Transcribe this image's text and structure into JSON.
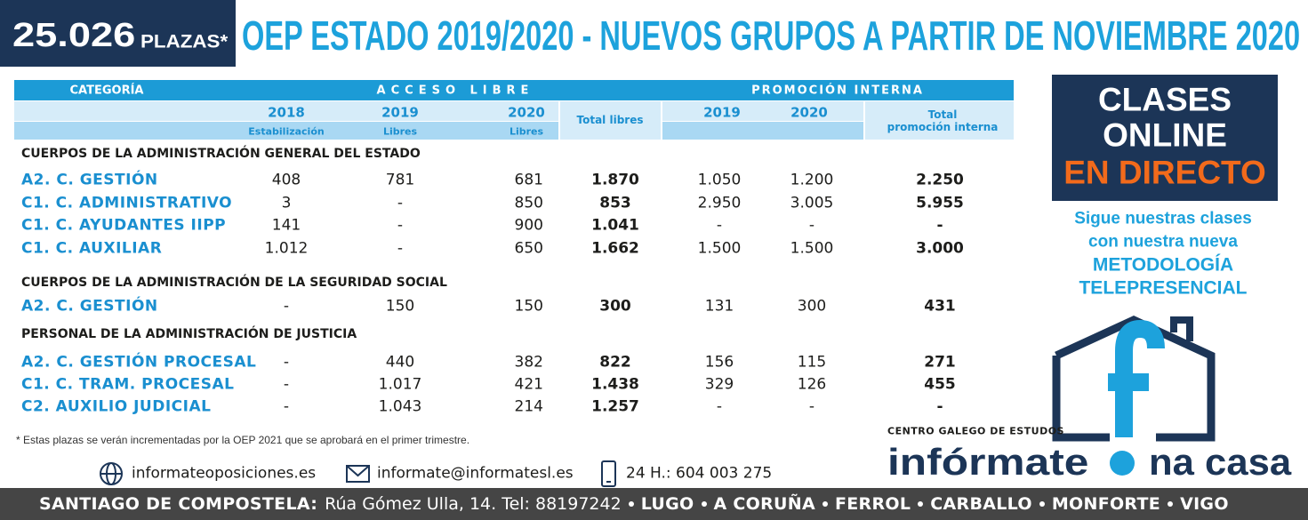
{
  "header": {
    "badge_number": "25.026",
    "badge_unit": "PLAZAS*",
    "title": "OEP ESTADO 2019/2020 - NUEVOS GRUPOS A PARTIR DE NOVIEMBRE 2020"
  },
  "table": {
    "col_categoria": "CATEGORÍA",
    "col_acceso_libre": "ACCESO LIBRE",
    "col_promocion_interna": "PROMOCIÓN INTERNA",
    "libre_years": [
      "2018",
      "2019",
      "2020"
    ],
    "libre_notes": [
      "Estabilización",
      "Libres",
      "Libres"
    ],
    "total_libres": "Total libres",
    "interna_years": [
      "2019",
      "2020"
    ],
    "total_interna": [
      "Total",
      "promoción interna"
    ],
    "sections": [
      {
        "title": "CUERPOS DE LA ADMINISTRACIÓN GENERAL DEL ESTADO",
        "rows": [
          [
            "A2. C. GESTIÓN",
            "408",
            "781",
            "681",
            "1.870",
            "1.050",
            "1.200",
            "2.250"
          ],
          [
            "C1. C. ADMINISTRATIVO",
            "3",
            "-",
            "850",
            "853",
            "2.950",
            "3.005",
            "5.955"
          ],
          [
            "C1. C. AYUDANTES IIPP",
            "141",
            "-",
            "900",
            "1.041",
            "-",
            "-",
            "-"
          ],
          [
            "C1. C. AUXILIAR",
            "1.012",
            "-",
            "650",
            "1.662",
            "1.500",
            "1.500",
            "3.000"
          ]
        ]
      },
      {
        "title": "CUERPOS DE LA ADMINISTRACIÓN DE LA SEGURIDAD SOCIAL",
        "rows": [
          [
            "A2. C. GESTIÓN",
            "-",
            "150",
            "150",
            "300",
            "131",
            "300",
            "431"
          ]
        ]
      },
      {
        "title": "PERSONAL DE LA ADMINISTRACIÓN DE JUSTICIA",
        "rows": [
          [
            "A2. C. GESTIÓN PROCESAL",
            "-",
            "440",
            "382",
            "822",
            "156",
            "115",
            "271"
          ],
          [
            "C1. C. TRAM. PROCESAL",
            "-",
            "1.017",
            "421",
            "1.438",
            "329",
            "126",
            "455"
          ],
          [
            "C2. AUXILIO JUDICIAL",
            "-",
            "1.043",
            "214",
            "1.257",
            "-",
            "-",
            "-"
          ]
        ]
      }
    ]
  },
  "footnote": "* Estas plazas se verán incrementadas por la OEP 2021 que se aprobará en el primer trimestre.",
  "contacts": {
    "web": "informateoposiciones.es",
    "email": "informate@informatesl.es",
    "phone": "24 H.: 604 003 275"
  },
  "promo": {
    "lines": [
      "CLASES",
      "ONLINE"
    ],
    "highlight": "EN DIRECTO",
    "tagline": [
      "Sigue nuestras clases",
      "con nuestra nueva"
    ],
    "method": [
      "METODOLOGÍA",
      "TELEPRESENCIAL"
    ],
    "brand_small": "CENTRO GALEGO DE ESTUDOS",
    "brand_left": "infórmate",
    "brand_right": "na casa"
  },
  "footer": {
    "city": "SANTIAGO DE COMPOSTELA:",
    "address": "Rúa Gómez Ulla, 14. Tel: 88197242",
    "cities": [
      "LUGO",
      "A CORUÑA",
      "FERROL",
      "CARBALLO",
      "MONFORTE",
      "VIGO"
    ]
  }
}
